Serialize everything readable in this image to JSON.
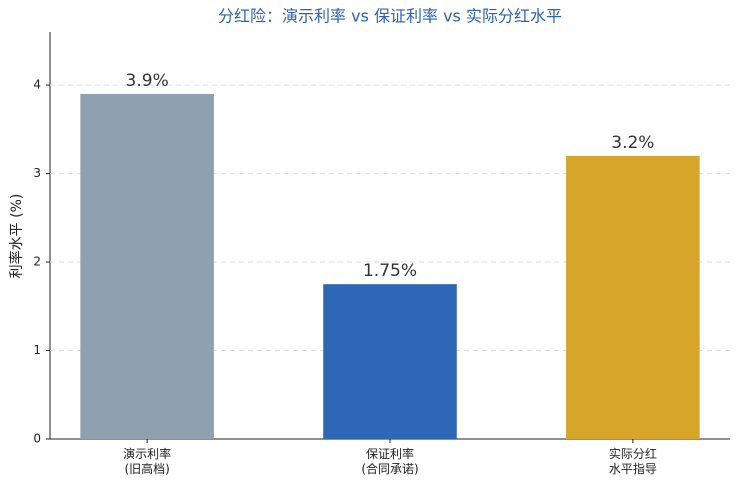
{
  "chart_data": {
    "type": "bar",
    "title": "分红险：演示利率 vs 保证利率 vs 实际分红水平",
    "y_label": "利率水平 (%)",
    "categories": [
      "演示利率\n(旧高档)",
      "保证利率\n(合同承诺)",
      "实际分红\n水平指导"
    ],
    "values": [
      3.9,
      1.75,
      3.2
    ],
    "value_labels": [
      "3.9%",
      "1.75%",
      "3.2%"
    ],
    "colors": [
      "#8fa0b0",
      "#2e67b5",
      "#d6a62b"
    ],
    "ylim": [
      0,
      4.6
    ],
    "yticks": [
      0,
      1,
      2,
      3,
      4
    ],
    "grid": true
  }
}
